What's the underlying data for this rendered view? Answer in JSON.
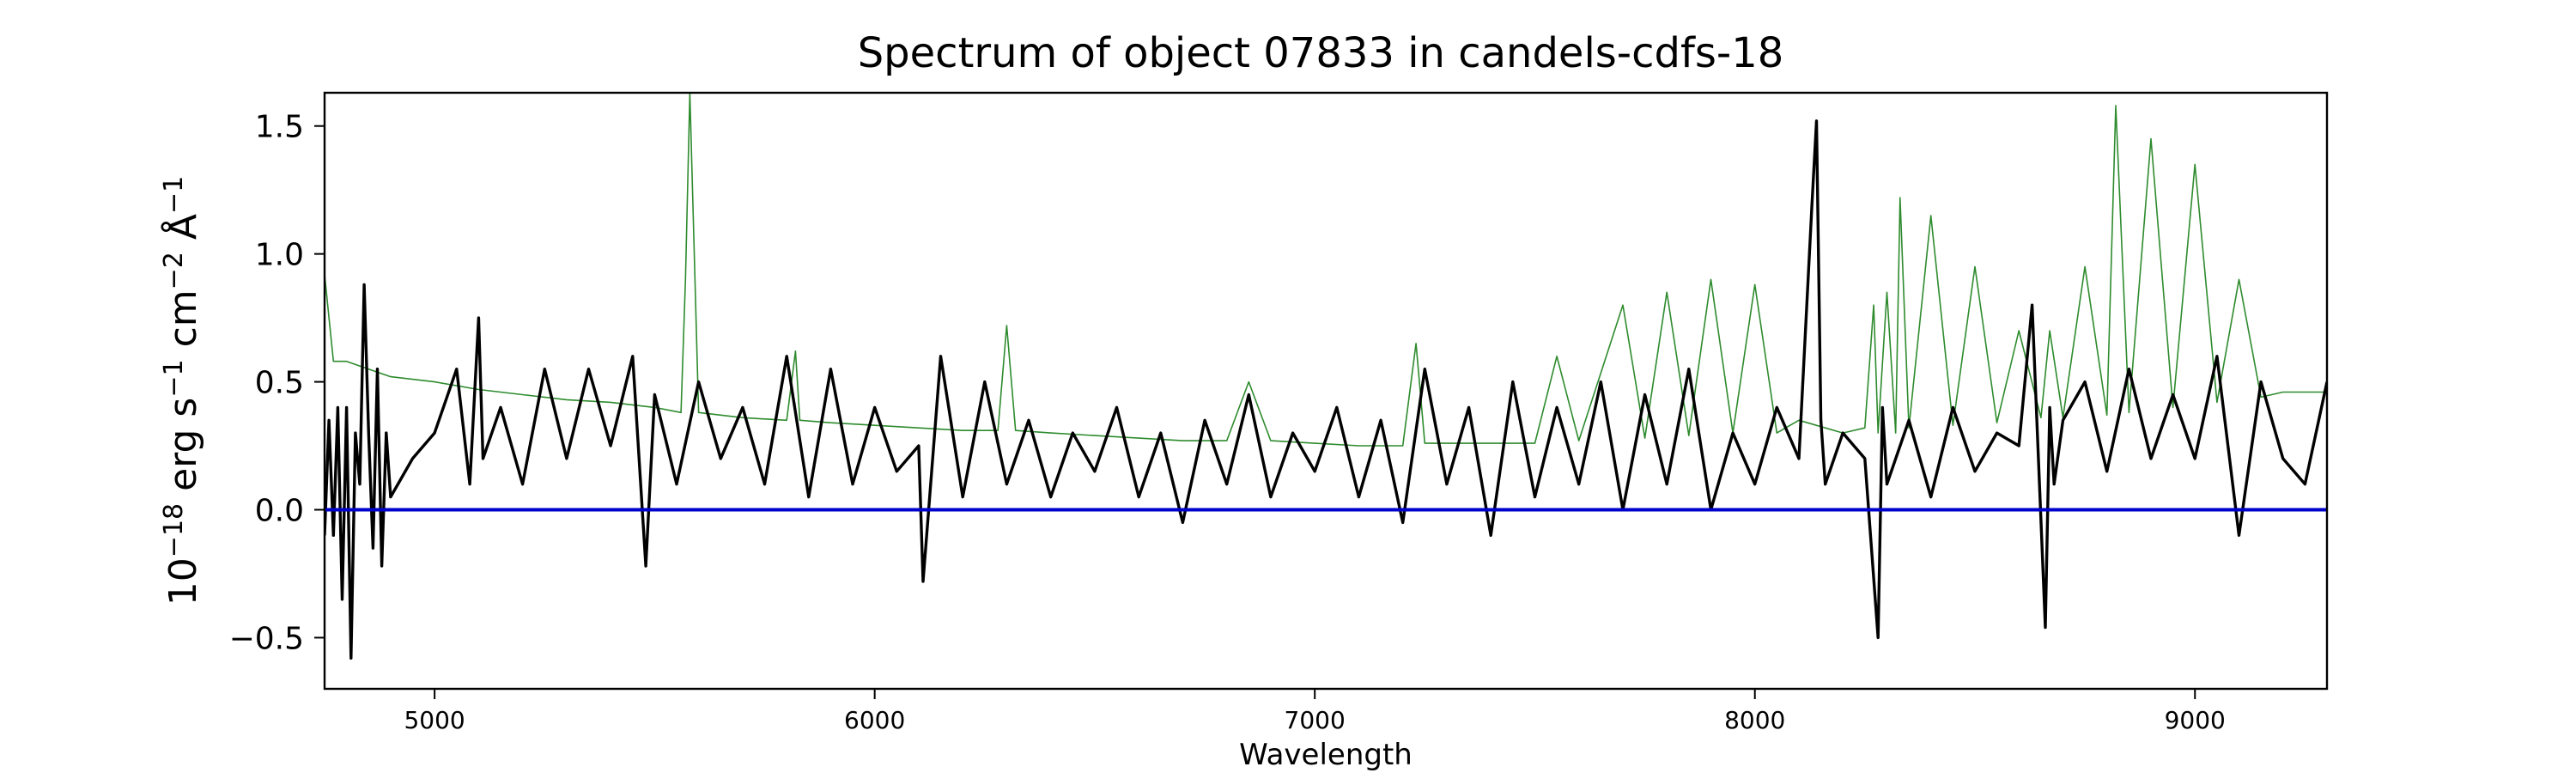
{
  "chart_data": {
    "type": "line",
    "title": "Spectrum of object 07833 in candels-cdfs-18",
    "xlabel": "Wavelength",
    "ylabel": {
      "prefix": "10",
      "exp1": "−18",
      "unit1": " erg s",
      "exp2": "−1",
      "unit2": " cm",
      "exp3": "−2",
      "unit3": " Å",
      "exp4": "−1"
    },
    "xlim": [
      4750,
      9300
    ],
    "ylim": [
      -0.7,
      1.63
    ],
    "xticks": [
      5000,
      6000,
      7000,
      8000,
      9000
    ],
    "xtick_labels": [
      "5000",
      "6000",
      "7000",
      "8000",
      "9000"
    ],
    "yticks": [
      -0.5,
      0.0,
      0.5,
      1.0,
      1.5
    ],
    "ytick_labels": [
      "−0.5",
      "0.0",
      "0.5",
      "1.0",
      "1.5"
    ],
    "grid": false,
    "colors": {
      "flux": "#000000",
      "error": "#2e8b2e",
      "zero": "#0000cc"
    },
    "series": [
      {
        "role": "flux",
        "x": [
          4750,
          4760,
          4770,
          4780,
          4790,
          4800,
          4810,
          4820,
          4830,
          4840,
          4850,
          4860,
          4870,
          4880,
          4890,
          4900,
          4950,
          5000,
          5050,
          5080,
          5100,
          5110,
          5150,
          5200,
          5250,
          5300,
          5350,
          5400,
          5450,
          5480,
          5500,
          5550,
          5600,
          5650,
          5700,
          5750,
          5800,
          5850,
          5900,
          5950,
          6000,
          6050,
          6100,
          6110,
          6150,
          6200,
          6250,
          6300,
          6350,
          6400,
          6450,
          6500,
          6550,
          6600,
          6650,
          6700,
          6750,
          6800,
          6850,
          6900,
          6950,
          7000,
          7050,
          7100,
          7150,
          7200,
          7250,
          7300,
          7350,
          7400,
          7450,
          7500,
          7550,
          7600,
          7650,
          7700,
          7750,
          7800,
          7850,
          7900,
          7950,
          8000,
          8050,
          8100,
          8130,
          8140,
          8150,
          8160,
          8200,
          8250,
          8280,
          8290,
          8300,
          8350,
          8400,
          8450,
          8500,
          8550,
          8600,
          8630,
          8660,
          8670,
          8680,
          8700,
          8750,
          8800,
          8850,
          8900,
          8950,
          9000,
          9050,
          9100,
          9150,
          9200,
          9250,
          9300
        ],
        "y": [
          -0.1,
          0.35,
          -0.1,
          0.4,
          -0.35,
          0.4,
          -0.58,
          0.3,
          0.1,
          0.88,
          0.3,
          -0.15,
          0.55,
          -0.22,
          0.3,
          0.05,
          0.2,
          0.3,
          0.55,
          0.1,
          0.75,
          0.2,
          0.4,
          0.1,
          0.55,
          0.2,
          0.55,
          0.25,
          0.6,
          -0.22,
          0.45,
          0.1,
          0.5,
          0.2,
          0.4,
          0.1,
          0.6,
          0.05,
          0.55,
          0.1,
          0.4,
          0.15,
          0.25,
          -0.28,
          0.6,
          0.05,
          0.5,
          0.1,
          0.35,
          0.05,
          0.3,
          0.15,
          0.4,
          0.05,
          0.3,
          -0.05,
          0.35,
          0.1,
          0.45,
          0.05,
          0.3,
          0.15,
          0.4,
          0.05,
          0.35,
          -0.05,
          0.55,
          0.1,
          0.4,
          -0.1,
          0.5,
          0.05,
          0.4,
          0.1,
          0.5,
          0.0,
          0.45,
          0.1,
          0.55,
          0.0,
          0.3,
          0.1,
          0.4,
          0.2,
          1.2,
          1.52,
          0.35,
          0.1,
          0.3,
          0.2,
          -0.5,
          0.4,
          0.1,
          0.35,
          0.05,
          0.4,
          0.15,
          0.3,
          0.25,
          0.8,
          -0.46,
          0.4,
          0.1,
          0.35,
          0.5,
          0.15,
          0.55,
          0.2,
          0.45,
          0.2,
          0.6,
          -0.1,
          0.5,
          0.2,
          0.1,
          0.5
        ]
      },
      {
        "role": "error",
        "x": [
          4750,
          4770,
          4800,
          4850,
          4900,
          5000,
          5100,
          5200,
          5300,
          5400,
          5500,
          5560,
          5570,
          5580,
          5600,
          5700,
          5800,
          5820,
          5830,
          5900,
          6000,
          6100,
          6200,
          6280,
          6300,
          6320,
          6400,
          6500,
          6600,
          6700,
          6800,
          6850,
          6900,
          7000,
          7100,
          7200,
          7230,
          7250,
          7300,
          7400,
          7500,
          7550,
          7600,
          7700,
          7750,
          7800,
          7850,
          7900,
          7950,
          8000,
          8050,
          8100,
          8200,
          8250,
          8270,
          8280,
          8300,
          8320,
          8330,
          8350,
          8400,
          8450,
          8500,
          8550,
          8600,
          8650,
          8670,
          8700,
          8750,
          8800,
          8820,
          8850,
          8900,
          8950,
          9000,
          9050,
          9100,
          9150,
          9200,
          9300
        ],
        "y": [
          0.92,
          0.58,
          0.58,
          0.55,
          0.52,
          0.5,
          0.47,
          0.45,
          0.43,
          0.42,
          0.4,
          0.38,
          0.9,
          1.63,
          0.38,
          0.36,
          0.35,
          0.62,
          0.35,
          0.34,
          0.33,
          0.32,
          0.31,
          0.31,
          0.72,
          0.31,
          0.3,
          0.29,
          0.28,
          0.27,
          0.27,
          0.5,
          0.27,
          0.26,
          0.25,
          0.25,
          0.65,
          0.26,
          0.26,
          0.26,
          0.26,
          0.6,
          0.27,
          0.8,
          0.28,
          0.85,
          0.29,
          0.9,
          0.3,
          0.88,
          0.3,
          0.35,
          0.3,
          0.32,
          0.8,
          0.3,
          0.85,
          0.3,
          1.22,
          0.32,
          1.15,
          0.33,
          0.95,
          0.34,
          0.7,
          0.36,
          0.7,
          0.36,
          0.95,
          0.37,
          1.58,
          0.38,
          1.45,
          0.4,
          1.35,
          0.42,
          0.9,
          0.44,
          0.46,
          0.46
        ]
      }
    ]
  }
}
